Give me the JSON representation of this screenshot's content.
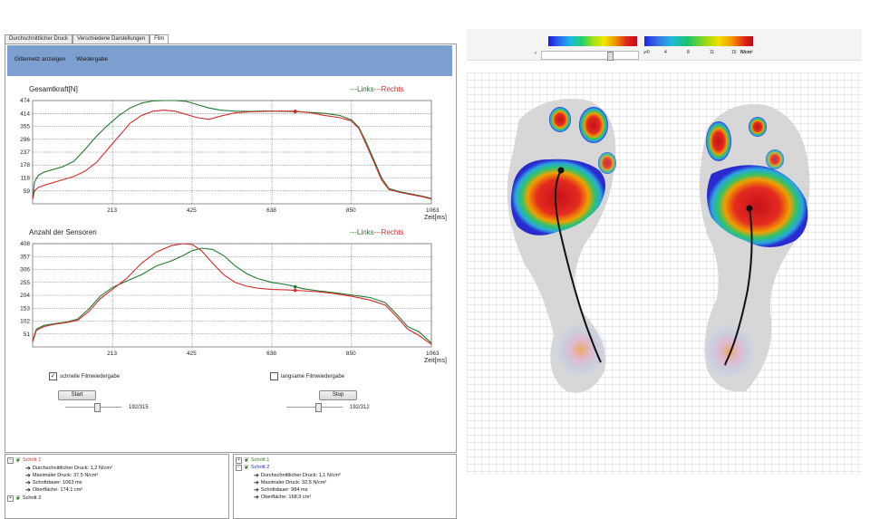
{
  "tabs": [
    "Durchschnittlicher Druck",
    "Verschiedene Darstellungen",
    "Film"
  ],
  "toolbar": {
    "grid_label": "Gitternetz anzeigen",
    "play_label": "Wiedergabe"
  },
  "chart_data": [
    {
      "type": "line",
      "title": "Gesamtkraft[N]",
      "xlabel": "Zeit[ms]",
      "legend": "---Links---Rechts",
      "legend_placement": "top-right",
      "grid": true,
      "xlim": [
        0,
        1063
      ],
      "ylim": [
        0,
        474
      ],
      "x_ticks": [
        213,
        425,
        638,
        850,
        1063
      ],
      "y_ticks": [
        59,
        118,
        178,
        237,
        296,
        355,
        414,
        474
      ],
      "series": [
        {
          "name": "Links",
          "color": "#1f7a2a",
          "x": [
            0,
            5,
            15,
            30,
            50,
            80,
            110,
            140,
            170,
            200,
            230,
            260,
            290,
            320,
            350,
            380,
            410,
            440,
            470,
            500,
            540,
            580,
            620,
            660,
            700,
            740,
            780,
            820,
            850,
            870,
            890,
            910,
            930,
            950,
            980,
            1010,
            1040,
            1063
          ],
          "y": [
            30,
            100,
            130,
            145,
            155,
            170,
            195,
            250,
            310,
            360,
            405,
            440,
            462,
            472,
            474,
            474,
            470,
            455,
            440,
            430,
            425,
            424,
            426,
            425,
            423,
            420,
            415,
            405,
            385,
            350,
            280,
            200,
            120,
            70,
            55,
            45,
            35,
            25
          ]
        },
        {
          "name": "Rechts",
          "color": "#d42a2a",
          "x": [
            0,
            5,
            15,
            30,
            50,
            80,
            110,
            140,
            170,
            200,
            230,
            260,
            290,
            320,
            350,
            380,
            410,
            440,
            470,
            500,
            540,
            580,
            620,
            660,
            700,
            740,
            780,
            820,
            850,
            870,
            890,
            910,
            930,
            950,
            980,
            1010,
            1040,
            1063
          ],
          "y": [
            20,
            60,
            75,
            85,
            95,
            110,
            125,
            150,
            190,
            250,
            310,
            370,
            405,
            425,
            430,
            425,
            410,
            395,
            388,
            402,
            418,
            422,
            424,
            426,
            425,
            418,
            405,
            395,
            380,
            345,
            270,
            190,
            110,
            65,
            52,
            42,
            32,
            22
          ]
        }
      ]
    },
    {
      "type": "line",
      "title": "Anzahl der Sensoren",
      "xlabel": "Zeit[ms]",
      "legend": "---Links---Rechts",
      "legend_placement": "top-right",
      "grid": true,
      "xlim": [
        0,
        1063
      ],
      "ylim": [
        0,
        408
      ],
      "x_ticks": [
        213,
        425,
        638,
        850,
        1063
      ],
      "y_ticks": [
        51,
        102,
        153,
        204,
        255,
        306,
        357,
        408
      ],
      "series": [
        {
          "name": "Links",
          "color": "#1f7a2a",
          "x": [
            0,
            10,
            30,
            60,
            90,
            120,
            150,
            180,
            213,
            250,
            290,
            330,
            370,
            400,
            425,
            450,
            480,
            510,
            540,
            570,
            600,
            638,
            680,
            720,
            760,
            800,
            850,
            900,
            940,
            970,
            1000,
            1030,
            1063
          ],
          "y": [
            25,
            70,
            85,
            92,
            98,
            110,
            150,
            200,
            235,
            260,
            285,
            320,
            340,
            360,
            380,
            390,
            385,
            360,
            320,
            290,
            270,
            255,
            245,
            230,
            222,
            215,
            205,
            195,
            175,
            130,
            80,
            60,
            15
          ]
        },
        {
          "name": "Rechts",
          "color": "#d42a2a",
          "x": [
            0,
            10,
            30,
            60,
            90,
            120,
            150,
            180,
            213,
            250,
            290,
            330,
            370,
            400,
            425,
            450,
            480,
            510,
            540,
            570,
            600,
            638,
            680,
            720,
            760,
            800,
            850,
            900,
            940,
            970,
            1000,
            1030,
            1063
          ],
          "y": [
            20,
            65,
            80,
            90,
            96,
            105,
            140,
            190,
            228,
            270,
            330,
            375,
            400,
            408,
            405,
            380,
            330,
            285,
            255,
            240,
            232,
            227,
            225,
            222,
            218,
            212,
            200,
            185,
            165,
            120,
            70,
            45,
            10
          ]
        }
      ]
    }
  ],
  "film_left": {
    "checkbox_label": "schnelle Filmwiedergabe",
    "checked": true,
    "button_label": "Start",
    "counter": "192/315"
  },
  "film_right": {
    "checkbox_label": "langsame Filmwiedergabe",
    "checked": false,
    "button_label": "Stop",
    "counter": "192/312"
  },
  "tree_left": {
    "step1": "Schritt 1",
    "step2": "Schritt 2",
    "step1_color": "#d42a2a",
    "items": [
      "Durchschnittlicher Druck: 1,2 N/cm²",
      "Maximaler Druck: 37,5 N/cm²",
      "Schrittdauer: 1063 ms",
      "Oberfläche: 174,1 cm²"
    ]
  },
  "tree_right": {
    "step1": "Schritt 1",
    "step2": "Schritt 2",
    "step1_color": "#2a7a1a",
    "step2_color": "#1a2ad0",
    "items": [
      "Durchschnittlicher Druck: 1,1 N/cm²",
      "Maximaler Druck: 32,5 N/cm²",
      "Schrittdauer: 984 ms",
      "Oberfläche: 168,9 cm²"
    ]
  },
  "scale": {
    "ticks": [
      "0",
      "4",
      "8",
      "11",
      "15"
    ],
    "ticks_first": ">0",
    "unit": "N/cm²"
  }
}
